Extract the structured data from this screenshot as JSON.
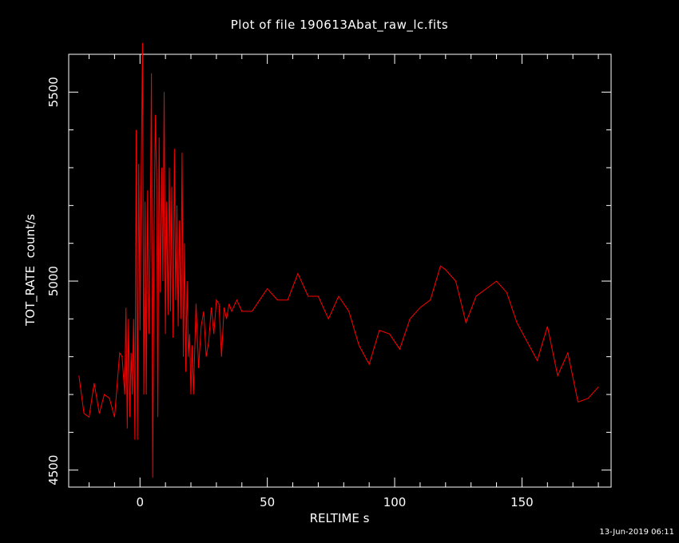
{
  "chart_data": {
    "type": "line",
    "title": "Plot of file 190613Abat_raw_lc.fits",
    "xlabel": "RELTIME  s",
    "ylabel": "TOT_RATE  count/s",
    "xlim": [
      -28,
      185
    ],
    "ylim": [
      4455,
      5600
    ],
    "x_ticks": [
      0,
      50,
      100,
      150
    ],
    "y_ticks": [
      4500,
      5000,
      5500
    ],
    "grid": false,
    "line_color": "#ff0000",
    "series": [
      {
        "x": [
          -24,
          -22,
          -20,
          -18,
          -16,
          -14,
          -12,
          -10,
          -8,
          -7,
          -6,
          -5.5,
          -5,
          -4.5,
          -4,
          -3.5,
          -3,
          -2.5,
          -2,
          -1.5,
          -1,
          -0.5,
          0,
          0.5,
          1,
          1.5,
          2,
          2.5,
          3,
          3.5,
          4,
          4.5,
          5,
          5.5,
          6,
          6.5,
          7,
          7.5,
          8,
          8.5,
          9,
          9.5,
          10,
          10.5,
          11,
          11.5,
          12,
          12.5,
          13,
          13.5,
          14,
          14.5,
          15,
          15.5,
          16,
          16.5,
          17,
          17.5,
          18,
          18.5,
          19,
          19.5,
          20,
          20.5,
          21,
          22,
          23,
          24,
          25,
          26,
          27,
          28,
          29,
          30,
          31,
          32,
          33,
          34,
          35,
          36,
          38,
          40,
          44,
          47,
          50,
          54,
          58,
          62,
          66,
          70,
          74,
          78,
          82,
          86,
          90,
          94,
          98,
          102,
          106,
          110,
          114,
          118,
          120,
          124,
          128,
          132,
          136,
          140,
          144,
          148,
          152,
          156,
          160,
          164,
          168,
          172,
          176,
          180
        ],
        "values": [
          4750,
          4650,
          4640,
          4730,
          4650,
          4700,
          4690,
          4640,
          4810,
          4800,
          4700,
          4930,
          4610,
          4900,
          4640,
          4810,
          4700,
          4900,
          4580,
          5400,
          4580,
          5310,
          4870,
          5300,
          5630,
          4700,
          5210,
          4700,
          5240,
          4860,
          5100,
          5550,
          4480,
          5100,
          5440,
          5280,
          4640,
          5380,
          4970,
          5300,
          5000,
          5500,
          4860,
          5210,
          4910,
          5300,
          4920,
          5250,
          4850,
          5350,
          4950,
          5200,
          4880,
          5160,
          4900,
          5340,
          4800,
          5100,
          4760,
          5000,
          4800,
          4860,
          4700,
          4830,
          4700,
          4940,
          4770,
          4880,
          4920,
          4800,
          4840,
          4930,
          4860,
          4950,
          4940,
          4800,
          4930,
          4900,
          4940,
          4920,
          4950,
          4920,
          4920,
          4950,
          4980,
          4950,
          4950,
          5020,
          4960,
          4960,
          4900,
          4960,
          4920,
          4830,
          4780,
          4870,
          4860,
          4820,
          4900,
          4930,
          4950,
          5040,
          5030,
          5000,
          4890,
          4960,
          4980,
          5000,
          4970,
          4890,
          4840,
          4790,
          4880,
          4750,
          4810,
          4680,
          4690,
          4720
        ]
      }
    ]
  },
  "timestamp": "13-Jun-2019 06:11"
}
